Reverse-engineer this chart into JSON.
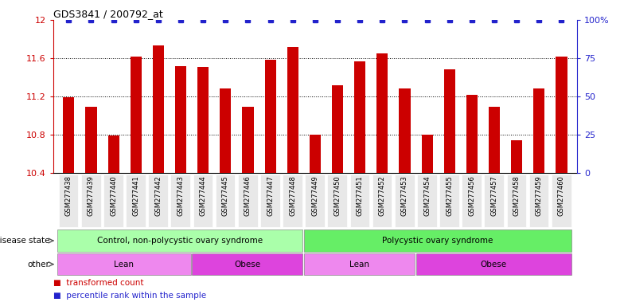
{
  "title": "GDS3841 / 200792_at",
  "samples": [
    "GSM277438",
    "GSM277439",
    "GSM277440",
    "GSM277441",
    "GSM277442",
    "GSM277443",
    "GSM277444",
    "GSM277445",
    "GSM277446",
    "GSM277447",
    "GSM277448",
    "GSM277449",
    "GSM277450",
    "GSM277451",
    "GSM277452",
    "GSM277453",
    "GSM277454",
    "GSM277455",
    "GSM277456",
    "GSM277457",
    "GSM277458",
    "GSM277459",
    "GSM277460"
  ],
  "transformed_count": [
    11.19,
    11.09,
    10.79,
    11.62,
    11.73,
    11.52,
    11.51,
    11.28,
    11.09,
    11.58,
    11.72,
    10.8,
    11.32,
    11.57,
    11.65,
    11.28,
    10.8,
    11.48,
    11.22,
    11.09,
    10.74,
    11.28,
    11.62
  ],
  "percentile": [
    100,
    100,
    100,
    100,
    100,
    100,
    100,
    100,
    100,
    100,
    100,
    100,
    100,
    100,
    100,
    100,
    100,
    100,
    100,
    100,
    100,
    100,
    100
  ],
  "ylim_left": [
    10.4,
    12.0
  ],
  "ylim_right": [
    0,
    100
  ],
  "yticks_left": [
    10.4,
    10.8,
    11.2,
    11.6,
    12.0
  ],
  "ytick_labels_left": [
    "10.4",
    "10.8",
    "11.2",
    "11.6",
    "12"
  ],
  "yticks_right": [
    0,
    25,
    50,
    75,
    100
  ],
  "ytick_labels_right": [
    "0",
    "25",
    "50",
    "75",
    "100%"
  ],
  "bar_color": "#cc0000",
  "dot_color": "#2222cc",
  "disease_state_groups": [
    {
      "label": "Control, non-polycystic ovary syndrome",
      "start": 0,
      "end": 11,
      "color": "#aaffaa"
    },
    {
      "label": "Polycystic ovary syndrome",
      "start": 11,
      "end": 23,
      "color": "#66ee66"
    }
  ],
  "other_groups": [
    {
      "label": "Lean",
      "start": 0,
      "end": 6,
      "color": "#ee88ee"
    },
    {
      "label": "Obese",
      "start": 6,
      "end": 11,
      "color": "#dd44dd"
    },
    {
      "label": "Lean",
      "start": 11,
      "end": 16,
      "color": "#ee88ee"
    },
    {
      "label": "Obese",
      "start": 16,
      "end": 23,
      "color": "#dd44dd"
    }
  ],
  "disease_state_label": "disease state",
  "other_label": "other",
  "legend_bar_label": "transformed count",
  "legend_dot_label": "percentile rank within the sample",
  "bar_width": 0.5,
  "dot_size": 4,
  "dot_marker": "s",
  "left_axis_color": "#cc0000",
  "right_axis_color": "#2222cc",
  "bg_color": "#ffffff",
  "ticklabel_area_color": "#dddddd"
}
